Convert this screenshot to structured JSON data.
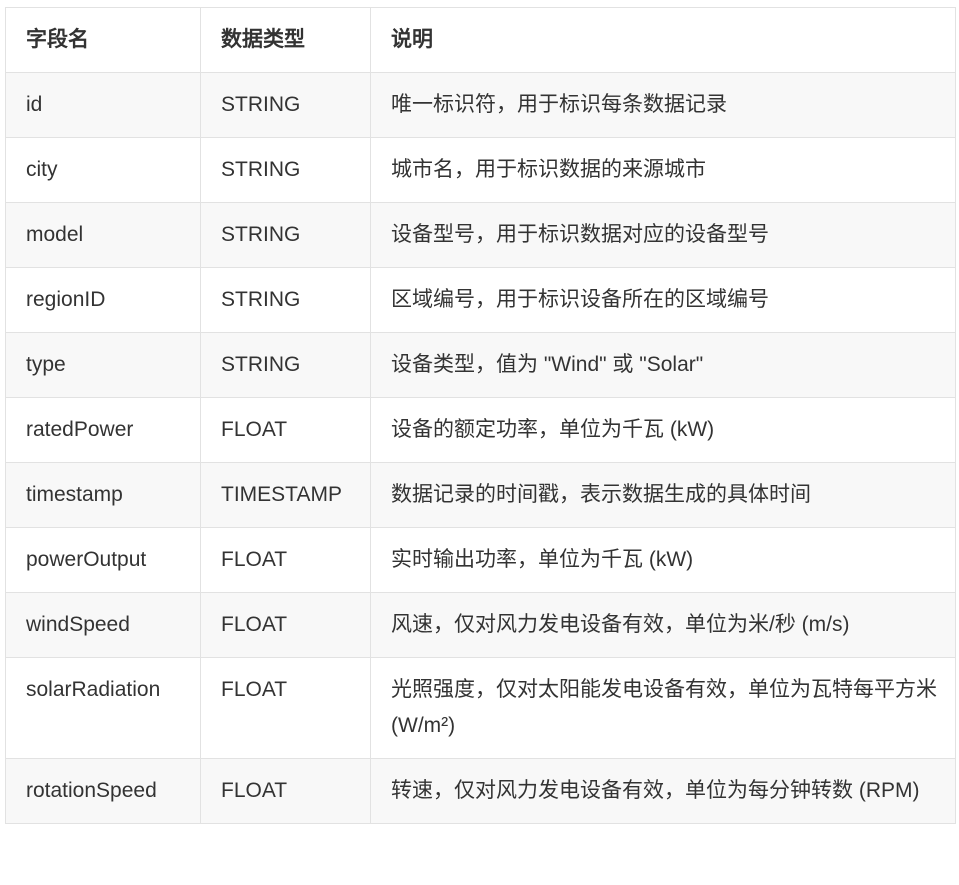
{
  "table": {
    "headers": [
      "字段名",
      "数据类型",
      "说明"
    ],
    "rows": [
      {
        "field": "id",
        "type": "STRING",
        "desc": "唯一标识符，用于标识每条数据记录"
      },
      {
        "field": "city",
        "type": "STRING",
        "desc": "城市名，用于标识数据的来源城市"
      },
      {
        "field": "model",
        "type": "STRING",
        "desc": "设备型号，用于标识数据对应的设备型号"
      },
      {
        "field": "regionID",
        "type": "STRING",
        "desc": "区域编号，用于标识设备所在的区域编号"
      },
      {
        "field": "type",
        "type": "STRING",
        "desc": "设备类型，值为 \"Wind\" 或 \"Solar\""
      },
      {
        "field": "ratedPower",
        "type": "FLOAT",
        "desc": "设备的额定功率，单位为千瓦 (kW)"
      },
      {
        "field": "timestamp",
        "type": "TIMESTAMP",
        "desc": "数据记录的时间戳，表示数据生成的具体时间"
      },
      {
        "field": "powerOutput",
        "type": "FLOAT",
        "desc": "实时输出功率，单位为千瓦 (kW)"
      },
      {
        "field": "windSpeed",
        "type": "FLOAT",
        "desc": "风速，仅对风力发电设备有效，单位为米/秒 (m/s)"
      },
      {
        "field": "solarRadiation",
        "type": "FLOAT",
        "desc": "光照强度，仅对太阳能发电设备有效，单位为瓦特每平方米 (W/m²)"
      },
      {
        "field": "rotationSpeed",
        "type": "FLOAT",
        "desc": "转速，仅对风力发电设备有效，单位为每分钟转数 (RPM)"
      }
    ]
  }
}
